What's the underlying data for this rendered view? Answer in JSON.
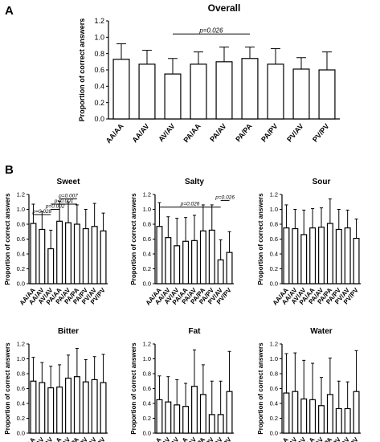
{
  "panels": [
    {
      "letter": "A"
    },
    {
      "letter": "B"
    }
  ],
  "chart_data": [
    {
      "type": "bar",
      "panel": "A",
      "title": "Overall",
      "ylabel": "Proportion of correct answers",
      "categories": [
        "AA/AA",
        "AA/AV",
        "AV/AV",
        "PA/AA",
        "PA/AV",
        "PA/PA",
        "PA/PV",
        "PV/AV",
        "PV/PV"
      ],
      "values": [
        0.73,
        0.67,
        0.55,
        0.67,
        0.7,
        0.74,
        0.67,
        0.61,
        0.6
      ],
      "errors": [
        0.19,
        0.17,
        0.19,
        0.15,
        0.18,
        0.14,
        0.19,
        0.14,
        0.22
      ],
      "ylim": [
        0,
        1.2
      ],
      "yticks": [
        "0.0",
        "0.2",
        "0.4",
        "0.6",
        "0.8",
        "1.0",
        "1.2"
      ],
      "annotations": [
        {
          "from": 2,
          "to": 5,
          "text": "p=0.026"
        }
      ]
    },
    {
      "type": "bar",
      "panel": "B",
      "title": "Sweet",
      "ylabel": "Proportion of correct answers",
      "categories": [
        "AA/AA",
        "AA/AV",
        "AV/AV",
        "PA/AA",
        "PA/AV",
        "PA/PA",
        "PA/PV",
        "PV/AV",
        "PV/PV"
      ],
      "values": [
        0.81,
        0.73,
        0.47,
        0.84,
        0.82,
        0.8,
        0.74,
        0.77,
        0.71
      ],
      "errors": [
        0.26,
        0.24,
        0.25,
        0.27,
        0.28,
        0.26,
        0.26,
        0.31,
        0.24
      ],
      "ylim": [
        0,
        1.2
      ],
      "yticks": [
        "0.0",
        "0.2",
        "0.4",
        "0.6",
        "0.8",
        "1.0",
        "1.2"
      ],
      "annotations": [
        {
          "from": 3,
          "to": 5,
          "text": "p=0.007"
        },
        {
          "from": 2,
          "to": 5,
          "text": "p<0.001"
        },
        {
          "from": 0,
          "to": 2,
          "text": "p=0.028"
        },
        {
          "from": 2,
          "to": 3,
          "text": "p=0.002"
        }
      ]
    },
    {
      "type": "bar",
      "panel": "B",
      "title": "Salty",
      "ylabel": "Proportion of correct answers",
      "categories": [
        "AA/AA",
        "AA/AV",
        "AV/AV",
        "PA/AA",
        "PA/AV",
        "PA/PA",
        "PA/PV",
        "PV/AV",
        "PV/PV"
      ],
      "values": [
        0.77,
        0.62,
        0.51,
        0.57,
        0.58,
        0.71,
        0.72,
        0.32,
        0.42
      ],
      "errors": [
        0.32,
        0.28,
        0.37,
        0.32,
        0.34,
        0.35,
        0.34,
        0.27,
        0.28
      ],
      "ylim": [
        0,
        1.2
      ],
      "yticks": [
        "0.0",
        "0.2",
        "0.4",
        "0.6",
        "0.8",
        "1.0",
        "1.2"
      ],
      "annotations": [
        {
          "from": 7,
          "to": 8,
          "text": "p=0.026"
        },
        {
          "from": 0,
          "to": 7,
          "text": "p=0.026"
        }
      ]
    },
    {
      "type": "bar",
      "panel": "B",
      "title": "Sour",
      "ylabel": "Proportion of correct answers",
      "categories": [
        "AA/AA",
        "AA/AV",
        "AV/AV",
        "PA/AA",
        "PA/AV",
        "PA/PA",
        "PA/PV",
        "PV/AV",
        "PV/PV"
      ],
      "values": [
        0.75,
        0.74,
        0.66,
        0.75,
        0.76,
        0.81,
        0.73,
        0.75,
        0.61
      ],
      "errors": [
        0.31,
        0.26,
        0.33,
        0.26,
        0.26,
        0.33,
        0.27,
        0.24,
        0.26
      ],
      "ylim": [
        0,
        1.2
      ],
      "yticks": [
        "0.0",
        "0.2",
        "0.4",
        "0.6",
        "0.8",
        "1.0",
        "1.2"
      ],
      "annotations": []
    },
    {
      "type": "bar",
      "panel": "B",
      "title": "Bitter",
      "ylabel": "Proportion of correct answers",
      "categories": [
        "AA/AA",
        "AA/AV",
        "AV/AV",
        "PA/AA",
        "PA/AV",
        "PA/PA",
        "PA/PV",
        "PV/AV",
        "PV/PV"
      ],
      "values": [
        0.7,
        0.68,
        0.61,
        0.62,
        0.74,
        0.76,
        0.69,
        0.72,
        0.68
      ],
      "errors": [
        0.32,
        0.27,
        0.29,
        0.3,
        0.31,
        0.38,
        0.3,
        0.31,
        0.38
      ],
      "ylim": [
        0,
        1.2
      ],
      "yticks": [
        "0.0",
        "0.2",
        "0.4",
        "0.6",
        "0.8",
        "1.0",
        "1.2"
      ],
      "annotations": []
    },
    {
      "type": "bar",
      "panel": "B",
      "title": "Fat",
      "ylabel": "Proportion of correct answers",
      "categories": [
        "AA/AA",
        "AA/AV",
        "AV/AV",
        "PA/AA",
        "PA/AV",
        "PA/PA",
        "PA/PV",
        "PV/AV",
        "PV/PV"
      ],
      "values": [
        0.45,
        0.42,
        0.38,
        0.36,
        0.63,
        0.52,
        0.25,
        0.25,
        0.56
      ],
      "errors": [
        0.32,
        0.34,
        0.34,
        0.31,
        0.49,
        0.4,
        0.45,
        0.45,
        0.54
      ],
      "ylim": [
        0,
        1.2
      ],
      "yticks": [
        "0.0",
        "0.2",
        "0.4",
        "0.6",
        "0.8",
        "1.0",
        "1.2"
      ],
      "annotations": []
    },
    {
      "type": "bar",
      "panel": "B",
      "title": "Water",
      "ylabel": "Proportion of correct answers",
      "categories": [
        "AA/AA",
        "AA/AV",
        "AV/AV",
        "PA/AA",
        "PA/AV",
        "PA/PA",
        "PA/PV",
        "PV/AV",
        "PV/PV"
      ],
      "values": [
        0.54,
        0.56,
        0.46,
        0.45,
        0.37,
        0.52,
        0.33,
        0.33,
        0.56
      ],
      "errors": [
        0.53,
        0.52,
        0.52,
        0.49,
        0.38,
        0.49,
        0.37,
        0.36,
        0.55
      ],
      "ylim": [
        0,
        1.2
      ],
      "yticks": [
        "0.0",
        "0.2",
        "0.4",
        "0.6",
        "0.8",
        "1.0",
        "1.2"
      ],
      "annotations": []
    }
  ]
}
